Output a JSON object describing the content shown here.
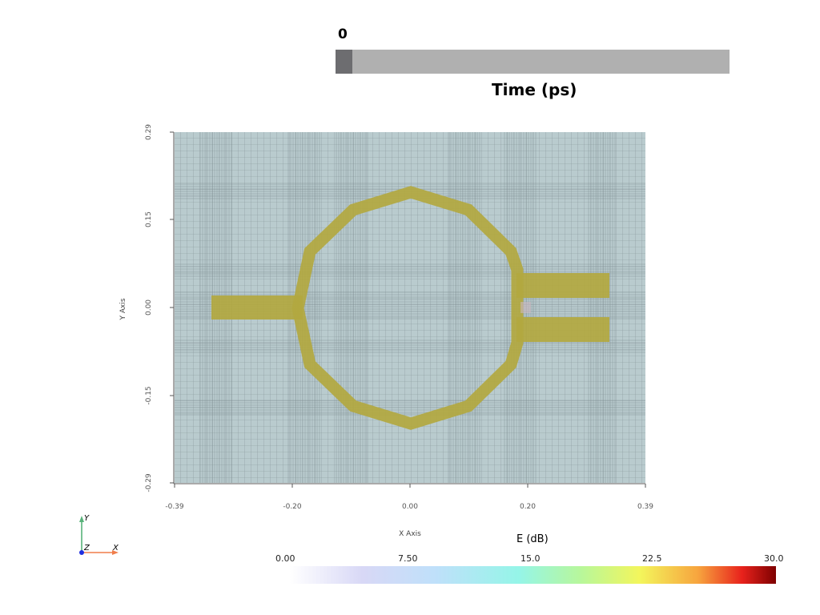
{
  "time_slider": {
    "value": "0",
    "title": "Time (ps)",
    "position_fraction": 0.0
  },
  "plot": {
    "x_axis_label": "X Axis",
    "y_axis_label": "Y Axis",
    "x_ticks": [
      "-0.39",
      "-0.20",
      "0.00",
      "0.20",
      "0.39"
    ],
    "y_ticks": [
      "0.29",
      "0.15",
      "0.00",
      "-0.15",
      "-0.29"
    ],
    "background_color": "#b9cbce",
    "grid_color": "#7c8b90",
    "structure_color": "#b2a840"
  },
  "colorbar": {
    "title": "E (dB)",
    "ticks": [
      "0.00",
      "7.50",
      "15.0",
      "22.5",
      "30.0"
    ],
    "range": [
      0,
      30
    ]
  },
  "orientation_axes": {
    "x_label": "X",
    "y_label": "Y",
    "z_label": "Z"
  }
}
